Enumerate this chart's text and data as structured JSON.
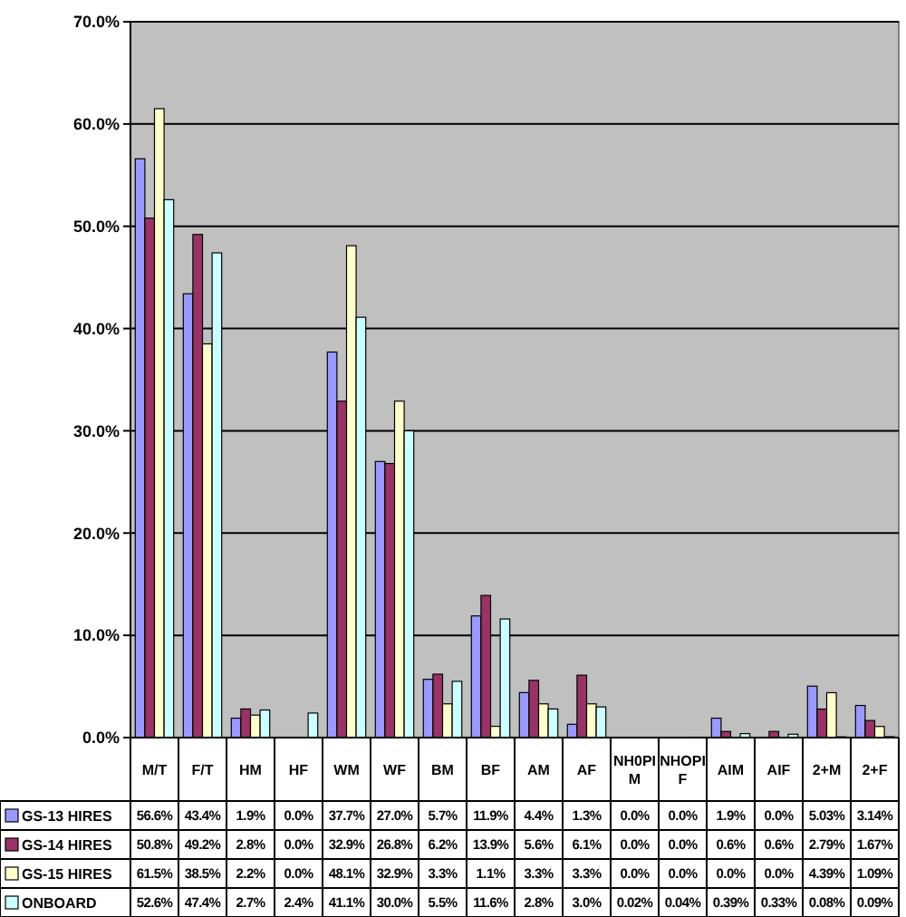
{
  "chart_data": {
    "type": "bar",
    "categories": [
      "M/T",
      "F/T",
      "HM",
      "HF",
      "WM",
      "WF",
      "BM",
      "BF",
      "AM",
      "AF",
      "NH0PI M",
      "NHOPI F",
      "AIM",
      "AIF",
      "2+M",
      "2+F"
    ],
    "series": [
      {
        "name": "GS-13 HIRES",
        "color": "#9999ff",
        "values": [
          56.6,
          43.4,
          1.9,
          0.0,
          37.7,
          27.0,
          5.7,
          11.9,
          4.4,
          1.3,
          0.0,
          0.0,
          1.9,
          0.0,
          5.03,
          3.14
        ],
        "value_labels": [
          "56.6%",
          "43.4%",
          "1.9%",
          "0.0%",
          "37.7%",
          "27.0%",
          "5.7%",
          "11.9%",
          "4.4%",
          "1.3%",
          "0.0%",
          "0.0%",
          "1.9%",
          "0.0%",
          "5.03%",
          "3.14%"
        ]
      },
      {
        "name": "GS-14 HIRES",
        "color": "#993366",
        "values": [
          50.8,
          49.2,
          2.8,
          0.0,
          32.9,
          26.8,
          6.2,
          13.9,
          5.6,
          6.1,
          0.0,
          0.0,
          0.6,
          0.6,
          2.79,
          1.67
        ],
        "value_labels": [
          "50.8%",
          "49.2%",
          "2.8%",
          "0.0%",
          "32.9%",
          "26.8%",
          "6.2%",
          "13.9%",
          "5.6%",
          "6.1%",
          "0.0%",
          "0.0%",
          "0.6%",
          "0.6%",
          "2.79%",
          "1.67%"
        ]
      },
      {
        "name": "GS-15 HIRES",
        "color": "#ffffcc",
        "values": [
          61.5,
          38.5,
          2.2,
          0.0,
          48.1,
          32.9,
          3.3,
          1.1,
          3.3,
          3.3,
          0.0,
          0.0,
          0.0,
          0.0,
          4.39,
          1.09
        ],
        "value_labels": [
          "61.5%",
          "38.5%",
          "2.2%",
          "0.0%",
          "48.1%",
          "32.9%",
          "3.3%",
          "1.1%",
          "3.3%",
          "3.3%",
          "0.0%",
          "0.0%",
          "0.0%",
          "0.0%",
          "4.39%",
          "1.09%"
        ]
      },
      {
        "name": "ONBOARD",
        "color": "#ccffff",
        "values": [
          52.6,
          47.4,
          2.7,
          2.4,
          41.1,
          30.0,
          5.5,
          11.6,
          2.8,
          3.0,
          0.02,
          0.04,
          0.39,
          0.33,
          0.08,
          0.09
        ],
        "value_labels": [
          "52.6%",
          "47.4%",
          "2.7%",
          "2.4%",
          "41.1%",
          "30.0%",
          "5.5%",
          "11.6%",
          "2.8%",
          "3.0%",
          "0.02%",
          "0.04%",
          "0.39%",
          "0.33%",
          "0.08%",
          "0.09%"
        ]
      }
    ],
    "ylim": [
      0,
      70
    ],
    "yticks": [
      {
        "value": 0,
        "label": "0.0%"
      },
      {
        "value": 10,
        "label": "10.0%"
      },
      {
        "value": 20,
        "label": "20.0%"
      },
      {
        "value": 30,
        "label": "30.0%"
      },
      {
        "value": 40,
        "label": "40.0%"
      },
      {
        "value": 50,
        "label": "50.0%"
      },
      {
        "value": 60,
        "label": "60.0%"
      },
      {
        "value": 70,
        "label": "70.0%"
      }
    ],
    "grid": "y",
    "legend": "bottom"
  }
}
